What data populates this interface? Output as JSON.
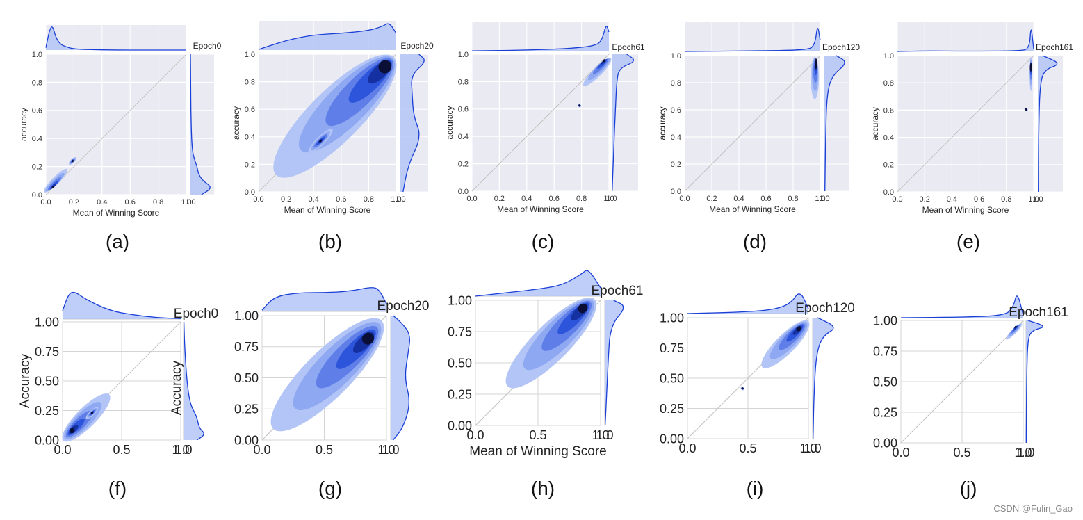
{
  "chart_data": [
    {
      "id": "a",
      "type": "scatter",
      "caption": "(a)",
      "epoch": "Epoch0",
      "style": "dark",
      "xlabel": "Mean of Winning Score",
      "ylabel": "accuracy",
      "xlim": [
        0,
        1
      ],
      "ylim": [
        0,
        1
      ],
      "xticks": [
        "0.0",
        "0.2",
        "0.4",
        "0.6",
        "0.8",
        "1.0"
      ],
      "yticks": [
        "0.0",
        "0.2",
        "0.4",
        "0.6",
        "0.8",
        "1.0"
      ],
      "density_regions": [
        {
          "x": [
            0.01,
            0.13
          ],
          "y": [
            0.0,
            0.2
          ],
          "peak": [
            0.05,
            0.05
          ]
        },
        {
          "x": [
            0.17,
            0.21
          ],
          "y": [
            0.21,
            0.27
          ],
          "peak": [
            0.19,
            0.24
          ]
        }
      ],
      "top_marginal": {
        "x": [
          0,
          0.03,
          0.05,
          0.07,
          0.1,
          0.15,
          0.2,
          0.3,
          0.5,
          0.7,
          1
        ],
        "density": [
          0.1,
          0.95,
          1,
          0.55,
          0.25,
          0.12,
          0.05,
          0.02,
          0,
          0,
          0
        ]
      },
      "right_marginal": {
        "y": [
          0,
          0.05,
          0.1,
          0.15,
          0.2,
          0.25,
          0.3,
          0.4,
          0.6,
          0.8,
          1
        ],
        "density": [
          0.5,
          1,
          0.55,
          0.35,
          0.3,
          0.18,
          0.1,
          0.05,
          0.02,
          0.01,
          0
        ]
      }
    },
    {
      "id": "b",
      "type": "scatter",
      "caption": "(b)",
      "epoch": "Epoch20",
      "style": "dark",
      "xlabel": "Mean of Winning Score",
      "ylabel": "accuracy",
      "xlim": [
        0,
        1
      ],
      "ylim": [
        0,
        1
      ],
      "xticks": [
        "0.0",
        "0.2",
        "0.4",
        "0.6",
        "0.8",
        "1.0"
      ],
      "yticks": [
        "0.0",
        "0.2",
        "0.4",
        "0.6",
        "0.8",
        "1.0"
      ],
      "density_regions": [
        {
          "x": [
            0.13,
            0.98
          ],
          "y": [
            0.12,
            0.98
          ],
          "peak": [
            0.95,
            0.94
          ]
        },
        {
          "x": [
            0.35,
            0.55
          ],
          "y": [
            0.3,
            0.44
          ],
          "peak": [
            0.45,
            0.37
          ]
        }
      ],
      "top_marginal": {
        "x": [
          0,
          0.2,
          0.4,
          0.6,
          0.8,
          0.9,
          0.95,
          1
        ],
        "density": [
          0.02,
          0.35,
          0.55,
          0.6,
          0.7,
          0.85,
          1,
          0.6
        ]
      },
      "right_marginal": {
        "y": [
          0,
          0.2,
          0.4,
          0.55,
          0.7,
          0.85,
          0.95,
          1
        ],
        "density": [
          0.1,
          0.3,
          0.8,
          0.5,
          0.45,
          0.4,
          1,
          0.7
        ]
      }
    },
    {
      "id": "c",
      "type": "scatter",
      "caption": "(c)",
      "epoch": "Epoch61",
      "style": "dark",
      "xlabel": "Mean of Winning Score",
      "ylabel": "accuracy",
      "xlim": [
        0,
        1
      ],
      "ylim": [
        0,
        1
      ],
      "xticks": [
        "0.0",
        "0.2",
        "0.4",
        "0.6",
        "0.8",
        "1.0"
      ],
      "yticks": [
        "0.0",
        "0.2",
        "0.4",
        "0.6",
        "0.8",
        "1.0"
      ],
      "density_regions": [
        {
          "x": [
            0.84,
            0.99
          ],
          "y": [
            0.75,
            0.99
          ],
          "peak": [
            0.97,
            0.96
          ]
        },
        {
          "x": [
            0.78,
            0.79
          ],
          "y": [
            0.62,
            0.63
          ],
          "peak": [
            0.785,
            0.625
          ]
        }
      ],
      "top_marginal": {
        "x": [
          0,
          0.4,
          0.7,
          0.9,
          0.95,
          0.98,
          1
        ],
        "density": [
          0.02,
          0.05,
          0.1,
          0.2,
          0.4,
          1,
          0.7
        ]
      },
      "right_marginal": {
        "y": [
          0,
          0.3,
          0.6,
          0.8,
          0.9,
          0.95,
          1
        ],
        "density": [
          0.02,
          0.08,
          0.15,
          0.2,
          0.3,
          1,
          0.6
        ]
      }
    },
    {
      "id": "d",
      "type": "scatter",
      "caption": "(d)",
      "epoch": "Epoch120",
      "style": "dark",
      "xlabel": "Mean of Winning Score",
      "ylabel": "accuracy",
      "xlim": [
        0,
        1
      ],
      "ylim": [
        0,
        1
      ],
      "xticks": [
        "0.0",
        "0.2",
        "0.4",
        "0.6",
        "0.8",
        "1.0"
      ],
      "yticks": [
        "0.0",
        "0.2",
        "0.4",
        "0.6",
        "0.8",
        "1.0"
      ],
      "density_regions": [
        {
          "x": [
            0.93,
            0.99
          ],
          "y": [
            0.68,
            0.99
          ],
          "peak": [
            0.97,
            0.95
          ]
        }
      ],
      "top_marginal": {
        "x": [
          0,
          0.5,
          0.9,
          0.96,
          0.98,
          1
        ],
        "density": [
          0,
          0.02,
          0.05,
          0.2,
          1,
          0.4
        ]
      },
      "right_marginal": {
        "y": [
          0,
          0.4,
          0.7,
          0.85,
          0.95,
          1
        ],
        "density": [
          0.02,
          0.05,
          0.1,
          0.3,
          1,
          0.5
        ]
      }
    },
    {
      "id": "e",
      "type": "scatter",
      "caption": "(e)",
      "epoch": "Epoch161",
      "style": "dark",
      "xlabel": "Mean of Winning Score",
      "ylabel": "accuracy",
      "xlim": [
        0,
        1
      ],
      "ylim": [
        0,
        1
      ],
      "xticks": [
        "0.0",
        "0.2",
        "0.4",
        "0.6",
        "0.8",
        "1.0"
      ],
      "yticks": [
        "0.0",
        "0.2",
        "0.4",
        "0.6",
        "0.8",
        "1.0"
      ],
      "density_regions": [
        {
          "x": [
            0.97,
            0.99
          ],
          "y": [
            0.74,
            0.99
          ],
          "peak": [
            0.98,
            0.92
          ]
        },
        {
          "x": [
            0.94,
            0.95
          ],
          "y": [
            0.6,
            0.61
          ],
          "peak": [
            0.945,
            0.605
          ]
        }
      ],
      "top_marginal": {
        "x": [
          0,
          0.2,
          0.5,
          0.9,
          0.97,
          0.98,
          1
        ],
        "density": [
          0,
          0.02,
          0.01,
          0.02,
          0.1,
          1,
          0.1
        ]
      },
      "right_marginal": {
        "y": [
          0,
          0.5,
          0.8,
          0.9,
          0.94,
          1
        ],
        "density": [
          0.02,
          0.04,
          0.1,
          0.3,
          1,
          0.2
        ]
      }
    },
    {
      "id": "f",
      "type": "scatter",
      "caption": "(f)",
      "epoch": "Epoch0",
      "style": "light",
      "xlabel": "",
      "ylabel": "Accuracy",
      "right_ylabel": "Accuracy",
      "xlim": [
        0,
        1
      ],
      "ylim": [
        0,
        1
      ],
      "xticks": [
        "0.0",
        "0.5",
        "1.0"
      ],
      "yticks": [
        "0.00",
        "0.25",
        "0.50",
        "0.75",
        "1.00"
      ],
      "density_regions": [
        {
          "x": [
            0.0,
            0.4
          ],
          "y": [
            0.0,
            0.38
          ],
          "peak": [
            0.07,
            0.07
          ]
        },
        {
          "x": [
            0.2,
            0.3
          ],
          "y": [
            0.18,
            0.28
          ],
          "peak": [
            0.25,
            0.23
          ]
        }
      ],
      "top_marginal": {
        "x": [
          0,
          0.05,
          0.1,
          0.2,
          0.4,
          0.6,
          0.8,
          1
        ],
        "density": [
          0.3,
          0.9,
          1,
          0.7,
          0.3,
          0.15,
          0.05,
          0.02
        ]
      },
      "right_marginal": {
        "y": [
          0,
          0.05,
          0.1,
          0.2,
          0.3,
          0.5,
          0.8,
          1
        ],
        "density": [
          0.6,
          1,
          0.7,
          0.6,
          0.3,
          0.15,
          0.05,
          0.02
        ]
      }
    },
    {
      "id": "g",
      "type": "scatter",
      "caption": "(g)",
      "epoch": "Epoch20",
      "style": "light",
      "xlabel": "",
      "ylabel": "",
      "xlim": [
        0,
        1
      ],
      "ylim": [
        0,
        1
      ],
      "xticks": [
        "0.0",
        "0.5",
        "1.0"
      ],
      "yticks": [
        "0.00",
        "0.25",
        "0.50",
        "0.75",
        "1.00"
      ],
      "density_regions": [
        {
          "x": [
            0.08,
            0.97
          ],
          "y": [
            0.1,
            0.95
          ],
          "peak": [
            0.88,
            0.84
          ]
        }
      ],
      "top_marginal": {
        "x": [
          0,
          0.1,
          0.3,
          0.5,
          0.7,
          0.9,
          0.95,
          1
        ],
        "density": [
          0.05,
          0.6,
          0.75,
          0.75,
          0.8,
          1,
          0.8,
          0.3
        ]
      },
      "right_marginal": {
        "y": [
          0,
          0.1,
          0.3,
          0.5,
          0.7,
          0.85,
          0.95,
          1
        ],
        "density": [
          0.1,
          0.5,
          0.8,
          0.55,
          0.7,
          0.8,
          0.4,
          0.1
        ]
      }
    },
    {
      "id": "h",
      "type": "scatter",
      "caption": "(h)",
      "epoch": "Epoch61",
      "style": "light",
      "xlabel": "Mean of Winning Score",
      "ylabel": "",
      "xlim": [
        0,
        1
      ],
      "ylim": [
        0,
        1
      ],
      "xticks": [
        "0.0",
        "0.5",
        "1.0"
      ],
      "yticks": [
        "0.00",
        "0.25",
        "0.50",
        "0.75",
        "1.00"
      ],
      "density_regions": [
        {
          "x": [
            0.24,
            0.97
          ],
          "y": [
            0.33,
            0.99
          ],
          "peak": [
            0.88,
            0.96
          ]
        }
      ],
      "top_marginal": {
        "x": [
          0,
          0.2,
          0.5,
          0.7,
          0.85,
          0.9,
          1
        ],
        "density": [
          0,
          0.1,
          0.25,
          0.4,
          0.8,
          1,
          0.3
        ]
      },
      "right_marginal": {
        "y": [
          0,
          0.3,
          0.5,
          0.8,
          0.95,
          1
        ],
        "density": [
          0.02,
          0.1,
          0.15,
          0.25,
          1,
          0.4
        ]
      }
    },
    {
      "id": "i",
      "type": "scatter",
      "caption": "(i)",
      "epoch": "Epoch120",
      "style": "light",
      "xlabel": "",
      "ylabel": "",
      "xlim": [
        0,
        1
      ],
      "ylim": [
        0,
        1
      ],
      "xticks": [
        "0.0",
        "0.5",
        "1.0"
      ],
      "yticks": [
        "0.00",
        "0.25",
        "0.50",
        "0.75",
        "1.00"
      ],
      "density_regions": [
        {
          "x": [
            0.63,
            0.99
          ],
          "y": [
            0.58,
            0.98
          ],
          "peak": [
            0.93,
            0.92
          ]
        },
        {
          "x": [
            0.45,
            0.46
          ],
          "y": [
            0.41,
            0.42
          ],
          "peak": [
            0.455,
            0.415
          ]
        }
      ],
      "top_marginal": {
        "x": [
          0,
          0.4,
          0.7,
          0.85,
          0.93,
          1
        ],
        "density": [
          0,
          0.05,
          0.15,
          0.4,
          1,
          0.2
        ]
      },
      "right_marginal": {
        "y": [
          0,
          0.4,
          0.7,
          0.85,
          0.92,
          1
        ],
        "density": [
          0.02,
          0.06,
          0.15,
          0.4,
          1,
          0.2
        ]
      }
    },
    {
      "id": "j",
      "type": "scatter",
      "caption": "(j)",
      "epoch": "Epoch161",
      "style": "light",
      "xlabel": "",
      "ylabel": "",
      "xlim": [
        0,
        1
      ],
      "ylim": [
        0,
        1
      ],
      "xticks": [
        "0.0",
        "0.5",
        "1.0"
      ],
      "yticks": [
        "0.00",
        "0.25",
        "0.50",
        "0.75",
        "1.00"
      ],
      "density_regions": [
        {
          "x": [
            0.88,
            0.97
          ],
          "y": [
            0.83,
            0.99
          ],
          "peak": [
            0.94,
            0.95
          ]
        }
      ],
      "top_marginal": {
        "x": [
          0,
          0.5,
          0.85,
          0.92,
          0.95,
          1
        ],
        "density": [
          0,
          0.02,
          0.08,
          0.4,
          1,
          0.1
        ]
      },
      "right_marginal": {
        "y": [
          0,
          0.5,
          0.85,
          0.92,
          0.95,
          1
        ],
        "density": [
          0.01,
          0.03,
          0.08,
          0.3,
          1,
          0.1
        ]
      }
    }
  ],
  "watermark": "CSDN @Fulin_Gao"
}
